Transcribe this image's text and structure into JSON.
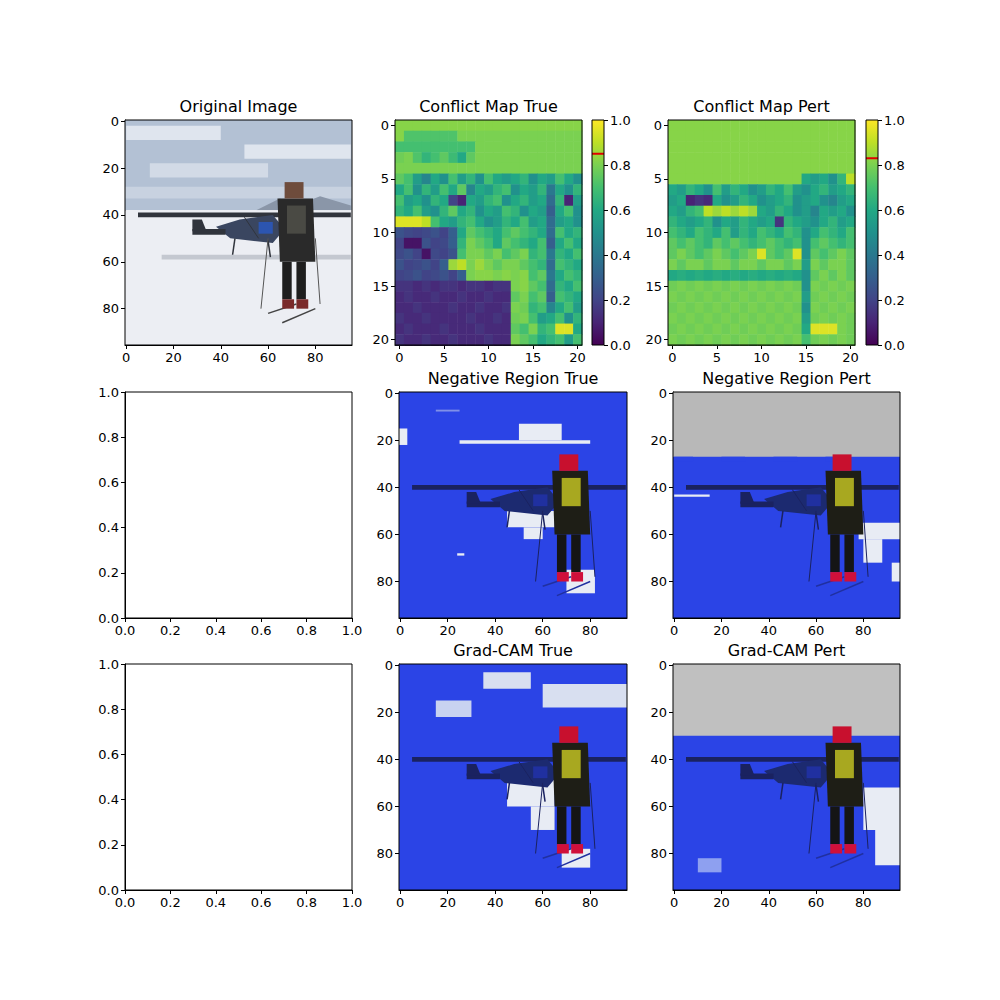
{
  "chart_data": [
    {
      "type": "image",
      "title": "Original Image",
      "xlim": [
        -0.5,
        95.5
      ],
      "ylim": [
        95.5,
        -0.5
      ],
      "xticks": [
        0,
        20,
        40,
        60,
        80
      ],
      "yticks": [
        0,
        20,
        40,
        60,
        80
      ]
    },
    {
      "type": "heatmap",
      "title": "Conflict Map True",
      "xlim": [
        -0.5,
        20.5
      ],
      "ylim": [
        20.5,
        -0.5
      ],
      "xticks": [
        0,
        5,
        10,
        15,
        20
      ],
      "yticks": [
        0,
        5,
        10,
        15,
        20
      ],
      "cells": [
        [
          0.82,
          0.82,
          0.82,
          0.82,
          0.82,
          0.82,
          0.82,
          0.82,
          0.82,
          0.82,
          0.82,
          0.82,
          0.82,
          0.82,
          0.82,
          0.82,
          0.82,
          0.82,
          0.82,
          0.82,
          0.82
        ],
        [
          0.82,
          0.72,
          0.72,
          0.72,
          0.72,
          0.72,
          0.72,
          0.8,
          0.8,
          0.8,
          0.8,
          0.8,
          0.8,
          0.8,
          0.8,
          0.8,
          0.8,
          0.8,
          0.8,
          0.8,
          0.8
        ],
        [
          0.7,
          0.7,
          0.7,
          0.7,
          0.7,
          0.7,
          0.7,
          0.7,
          0.7,
          0.8,
          0.8,
          0.8,
          0.8,
          0.8,
          0.8,
          0.8,
          0.8,
          0.8,
          0.8,
          0.8,
          0.8
        ],
        [
          0.78,
          0.8,
          0.72,
          0.65,
          0.7,
          0.75,
          0.68,
          0.6,
          0.75,
          0.8,
          0.8,
          0.8,
          0.8,
          0.8,
          0.8,
          0.8,
          0.8,
          0.8,
          0.8,
          0.8,
          0.8
        ],
        [
          0.8,
          0.8,
          0.8,
          0.8,
          0.8,
          0.8,
          0.8,
          0.8,
          0.8,
          0.8,
          0.8,
          0.8,
          0.8,
          0.8,
          0.8,
          0.8,
          0.8,
          0.8,
          0.8,
          0.8,
          0.8
        ],
        [
          0.75,
          0.7,
          0.55,
          0.45,
          0.6,
          0.5,
          0.7,
          0.55,
          0.65,
          0.5,
          0.7,
          0.6,
          0.55,
          0.6,
          0.65,
          0.5,
          0.6,
          0.55,
          0.7,
          0.6,
          0.5
        ],
        [
          0.6,
          0.7,
          0.5,
          0.65,
          0.55,
          0.7,
          0.6,
          0.75,
          0.45,
          0.6,
          0.55,
          0.65,
          0.7,
          0.5,
          0.6,
          0.55,
          0.65,
          0.4,
          0.6,
          0.5,
          0.65
        ],
        [
          0.7,
          0.55,
          0.6,
          0.5,
          0.65,
          0.6,
          0.2,
          0.1,
          0.6,
          0.55,
          0.65,
          0.7,
          0.5,
          0.6,
          0.65,
          0.55,
          0.6,
          0.35,
          0.65,
          0.1,
          0.55
        ],
        [
          0.65,
          0.6,
          0.7,
          0.55,
          0.5,
          0.65,
          0.75,
          0.6,
          0.65,
          0.5,
          0.6,
          0.55,
          0.7,
          0.65,
          0.5,
          0.6,
          0.55,
          0.3,
          0.6,
          0.7,
          0.5
        ],
        [
          0.95,
          0.95,
          0.95,
          0.9,
          0.7,
          0.6,
          0.55,
          0.65,
          0.7,
          0.6,
          0.5,
          0.55,
          0.65,
          0.6,
          0.7,
          0.55,
          0.6,
          0.35,
          0.55,
          0.6,
          0.5
        ],
        [
          0.25,
          0.22,
          0.2,
          0.22,
          0.25,
          0.2,
          0.3,
          0.6,
          0.75,
          0.7,
          0.65,
          0.6,
          0.7,
          0.75,
          0.7,
          0.65,
          0.6,
          0.35,
          0.7,
          0.6,
          0.65
        ],
        [
          0.2,
          0.05,
          0.05,
          0.25,
          0.2,
          0.22,
          0.3,
          0.65,
          0.8,
          0.75,
          0.7,
          0.6,
          0.75,
          0.7,
          0.65,
          0.6,
          0.7,
          0.3,
          0.6,
          0.7,
          0.6
        ],
        [
          0.22,
          0.25,
          0.2,
          0.05,
          0.22,
          0.2,
          0.25,
          0.7,
          0.8,
          0.8,
          0.75,
          0.8,
          0.7,
          0.75,
          0.8,
          0.65,
          0.7,
          0.4,
          0.65,
          0.6,
          0.7
        ],
        [
          0.25,
          0.2,
          0.22,
          0.25,
          0.2,
          0.3,
          0.85,
          0.9,
          0.8,
          0.85,
          0.8,
          0.75,
          0.8,
          0.8,
          0.75,
          0.7,
          0.65,
          0.35,
          0.7,
          0.65,
          0.6
        ],
        [
          0.2,
          0.22,
          0.25,
          0.2,
          0.22,
          0.25,
          0.2,
          0.3,
          0.8,
          0.82,
          0.82,
          0.8,
          0.82,
          0.8,
          0.82,
          0.7,
          0.75,
          0.4,
          0.6,
          0.7,
          0.65
        ],
        [
          0.15,
          0.15,
          0.12,
          0.15,
          0.12,
          0.15,
          0.15,
          0.12,
          0.15,
          0.15,
          0.12,
          0.15,
          0.15,
          0.8,
          0.82,
          0.75,
          0.7,
          0.35,
          0.65,
          0.6,
          0.7
        ],
        [
          0.12,
          0.15,
          0.12,
          0.12,
          0.15,
          0.12,
          0.12,
          0.15,
          0.12,
          0.12,
          0.15,
          0.12,
          0.12,
          0.75,
          0.8,
          0.7,
          0.75,
          0.3,
          0.7,
          0.65,
          0.6
        ],
        [
          0.12,
          0.12,
          0.15,
          0.12,
          0.12,
          0.12,
          0.15,
          0.12,
          0.12,
          0.15,
          0.12,
          0.12,
          0.15,
          0.8,
          0.78,
          0.65,
          0.7,
          0.45,
          0.6,
          0.7,
          0.55
        ],
        [
          0.15,
          0.12,
          0.12,
          0.15,
          0.12,
          0.12,
          0.12,
          0.12,
          0.15,
          0.12,
          0.12,
          0.15,
          0.12,
          0.78,
          0.8,
          0.7,
          0.55,
          0.6,
          0.7,
          0.5,
          0.65
        ],
        [
          0.12,
          0.15,
          0.12,
          0.12,
          0.12,
          0.15,
          0.12,
          0.12,
          0.12,
          0.15,
          0.12,
          0.12,
          0.12,
          0.75,
          0.7,
          0.8,
          0.65,
          0.7,
          0.95,
          0.95,
          0.6
        ],
        [
          0.15,
          0.12,
          0.12,
          0.15,
          0.12,
          0.12,
          0.15,
          0.12,
          0.12,
          0.12,
          0.15,
          0.12,
          0.12,
          0.8,
          0.75,
          0.7,
          0.6,
          0.65,
          0.7,
          0.55,
          0.7
        ]
      ],
      "colorbar": {
        "range": [
          0,
          1
        ],
        "ticks": [
          {
            "value": 0,
            "label": "0.0"
          },
          0.2,
          0.4,
          0.6,
          0.8,
          {
            "value": 1,
            "label": "1.0"
          }
        ],
        "threshold": 0.85
      }
    },
    {
      "type": "heatmap",
      "title": "Conflict Map Pert",
      "xlim": [
        -0.5,
        20.5
      ],
      "ylim": [
        20.5,
        -0.5
      ],
      "xticks": [
        0,
        5,
        10,
        15,
        20
      ],
      "yticks": [
        0,
        5,
        10,
        15,
        20
      ],
      "cells": [
        [
          0.82,
          0.82,
          0.82,
          0.82,
          0.82,
          0.82,
          0.82,
          0.82,
          0.82,
          0.82,
          0.82,
          0.82,
          0.82,
          0.82,
          0.82,
          0.82,
          0.82,
          0.82,
          0.82,
          0.82,
          0.82
        ],
        [
          0.82,
          0.82,
          0.82,
          0.82,
          0.82,
          0.82,
          0.82,
          0.82,
          0.82,
          0.82,
          0.82,
          0.82,
          0.82,
          0.82,
          0.82,
          0.82,
          0.82,
          0.82,
          0.82,
          0.82,
          0.82
        ],
        [
          0.82,
          0.82,
          0.82,
          0.82,
          0.82,
          0.82,
          0.82,
          0.82,
          0.82,
          0.82,
          0.82,
          0.82,
          0.82,
          0.82,
          0.82,
          0.82,
          0.82,
          0.82,
          0.82,
          0.82,
          0.82
        ],
        [
          0.82,
          0.82,
          0.82,
          0.82,
          0.82,
          0.82,
          0.82,
          0.82,
          0.82,
          0.82,
          0.82,
          0.82,
          0.82,
          0.82,
          0.82,
          0.82,
          0.82,
          0.82,
          0.82,
          0.82,
          0.82
        ],
        [
          0.82,
          0.82,
          0.82,
          0.82,
          0.82,
          0.82,
          0.82,
          0.82,
          0.82,
          0.82,
          0.82,
          0.82,
          0.82,
          0.82,
          0.82,
          0.82,
          0.82,
          0.82,
          0.82,
          0.82,
          0.82
        ],
        [
          0.82,
          0.82,
          0.82,
          0.82,
          0.82,
          0.82,
          0.82,
          0.82,
          0.82,
          0.82,
          0.82,
          0.82,
          0.82,
          0.82,
          0.82,
          0.6,
          0.55,
          0.6,
          0.5,
          0.65,
          0.9
        ],
        [
          0.6,
          0.55,
          0.65,
          0.6,
          0.5,
          0.7,
          0.55,
          0.65,
          0.6,
          0.5,
          0.55,
          0.65,
          0.6,
          0.7,
          0.55,
          0.5,
          0.6,
          0.65,
          0.55,
          0.6,
          0.65
        ],
        [
          0.55,
          0.6,
          0.1,
          0.15,
          0.12,
          0.6,
          0.5,
          0.55,
          0.65,
          0.6,
          0.5,
          0.55,
          0.6,
          0.65,
          0.5,
          0.55,
          0.6,
          0.5,
          0.45,
          0.55,
          0.6
        ],
        [
          0.6,
          0.55,
          0.65,
          0.7,
          0.9,
          0.85,
          0.9,
          0.85,
          0.9,
          0.85,
          0.6,
          0.55,
          0.65,
          0.6,
          0.5,
          0.55,
          0.45,
          0.6,
          0.55,
          0.6,
          0.5
        ],
        [
          0.65,
          0.6,
          0.55,
          0.6,
          0.65,
          0.5,
          0.6,
          0.55,
          0.65,
          0.6,
          0.55,
          0.6,
          0.15,
          0.65,
          0.6,
          0.55,
          0.5,
          0.6,
          0.65,
          0.55,
          0.6
        ],
        [
          0.7,
          0.65,
          0.6,
          0.7,
          0.65,
          0.6,
          0.7,
          0.55,
          0.65,
          0.6,
          0.7,
          0.65,
          0.6,
          0.7,
          0.65,
          0.5,
          0.6,
          0.7,
          0.65,
          0.6,
          0.7
        ],
        [
          0.75,
          0.7,
          0.75,
          0.7,
          0.65,
          0.75,
          0.7,
          0.75,
          0.7,
          0.65,
          0.7,
          0.75,
          0.7,
          0.65,
          0.7,
          0.5,
          0.7,
          0.75,
          0.7,
          0.65,
          0.7
        ],
        [
          0.75,
          0.8,
          0.75,
          0.7,
          0.75,
          0.8,
          0.75,
          0.7,
          0.75,
          0.8,
          0.95,
          0.75,
          0.7,
          0.75,
          0.95,
          0.5,
          0.75,
          0.7,
          0.75,
          0.8,
          0.75
        ],
        [
          0.8,
          0.75,
          0.8,
          0.8,
          0.75,
          0.8,
          0.8,
          0.75,
          0.8,
          0.8,
          0.75,
          0.8,
          0.8,
          0.75,
          0.8,
          0.55,
          0.8,
          0.75,
          0.8,
          0.8,
          0.75
        ],
        [
          0.6,
          0.62,
          0.6,
          0.62,
          0.6,
          0.62,
          0.6,
          0.62,
          0.6,
          0.62,
          0.6,
          0.62,
          0.6,
          0.62,
          0.6,
          0.5,
          0.75,
          0.8,
          0.75,
          0.8,
          0.75
        ],
        [
          0.78,
          0.8,
          0.78,
          0.8,
          0.78,
          0.8,
          0.78,
          0.8,
          0.78,
          0.8,
          0.78,
          0.8,
          0.78,
          0.8,
          0.78,
          0.5,
          0.8,
          0.78,
          0.8,
          0.78,
          0.8
        ],
        [
          0.8,
          0.78,
          0.8,
          0.78,
          0.8,
          0.78,
          0.8,
          0.78,
          0.8,
          0.78,
          0.8,
          0.78,
          0.8,
          0.78,
          0.8,
          0.55,
          0.78,
          0.8,
          0.78,
          0.8,
          0.78
        ],
        [
          0.78,
          0.8,
          0.78,
          0.8,
          0.78,
          0.8,
          0.78,
          0.8,
          0.78,
          0.8,
          0.78,
          0.8,
          0.78,
          0.8,
          0.78,
          0.5,
          0.8,
          0.78,
          0.8,
          0.78,
          0.8
        ],
        [
          0.8,
          0.78,
          0.8,
          0.78,
          0.8,
          0.78,
          0.8,
          0.78,
          0.8,
          0.78,
          0.8,
          0.78,
          0.8,
          0.78,
          0.8,
          0.55,
          0.78,
          0.8,
          0.78,
          0.8,
          0.78
        ],
        [
          0.78,
          0.8,
          0.78,
          0.8,
          0.78,
          0.8,
          0.78,
          0.8,
          0.78,
          0.8,
          0.78,
          0.8,
          0.78,
          0.8,
          0.78,
          0.6,
          0.95,
          0.95,
          0.95,
          0.8,
          0.78
        ],
        [
          0.8,
          0.78,
          0.8,
          0.78,
          0.8,
          0.78,
          0.8,
          0.78,
          0.8,
          0.78,
          0.8,
          0.78,
          0.8,
          0.78,
          0.8,
          0.7,
          0.78,
          0.8,
          0.78,
          0.8,
          0.78
        ]
      ],
      "colorbar": {
        "range": [
          0,
          1
        ],
        "ticks": [
          {
            "value": 0,
            "label": "0.0"
          },
          0.2,
          0.4,
          0.6,
          0.8,
          {
            "value": 1,
            "label": "1.0"
          }
        ],
        "threshold": 0.83
      }
    },
    {
      "type": "empty",
      "xlim": [
        0,
        1
      ],
      "ylim": [
        0,
        1
      ],
      "xticks": [
        {
          "value": 0,
          "label": "0.0"
        },
        0.2,
        0.4,
        0.6,
        0.8,
        {
          "value": 1,
          "label": "1.0"
        }
      ],
      "yticks": [
        {
          "value": 0,
          "label": "0.0"
        },
        0.2,
        0.4,
        0.6,
        0.8,
        {
          "value": 1,
          "label": "1.0"
        }
      ]
    },
    {
      "type": "image",
      "title": "Negative Region True",
      "xlim": [
        -0.5,
        95.5
      ],
      "ylim": [
        95.5,
        -0.5
      ],
      "xticks": [
        0,
        20,
        40,
        60,
        80
      ],
      "yticks": [
        0,
        20,
        40,
        60,
        80
      ]
    },
    {
      "type": "image",
      "title": "Negative Region Pert",
      "xlim": [
        -0.5,
        95.5
      ],
      "ylim": [
        95.5,
        -0.5
      ],
      "xticks": [
        0,
        20,
        40,
        60,
        80
      ],
      "yticks": [
        0,
        20,
        40,
        60,
        80
      ]
    },
    {
      "type": "empty",
      "xlim": [
        0,
        1
      ],
      "ylim": [
        0,
        1
      ],
      "xticks": [
        {
          "value": 0,
          "label": "0.0"
        },
        0.2,
        0.4,
        0.6,
        0.8,
        {
          "value": 1,
          "label": "1.0"
        }
      ],
      "yticks": [
        {
          "value": 0,
          "label": "0.0"
        },
        0.2,
        0.4,
        0.6,
        0.8,
        {
          "value": 1,
          "label": "1.0"
        }
      ]
    },
    {
      "type": "image",
      "title": "Grad-CAM True",
      "xlim": [
        -0.5,
        95.5
      ],
      "ylim": [
        95.5,
        -0.5
      ],
      "xticks": [
        0,
        20,
        40,
        60,
        80
      ],
      "yticks": [
        0,
        20,
        40,
        60,
        80
      ]
    },
    {
      "type": "image",
      "title": "Grad-CAM Pert",
      "xlim": [
        -0.5,
        95.5
      ],
      "ylim": [
        95.5,
        -0.5
      ],
      "xticks": [
        0,
        20,
        40,
        60,
        80
      ],
      "yticks": [
        0,
        20,
        40,
        60,
        80
      ]
    }
  ]
}
